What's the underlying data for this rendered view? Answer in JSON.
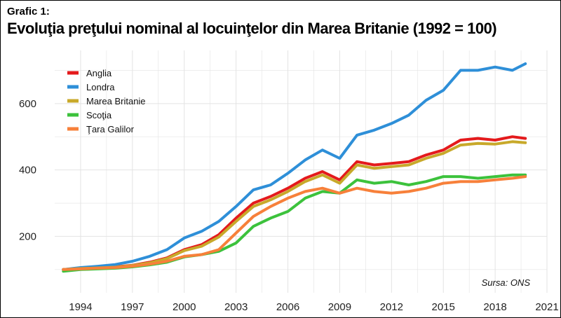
{
  "header": {
    "label": "Grafic 1:",
    "title": "Evoluţia preţului nominal al locuinţelor din Marea Britanie (1992 = 100)"
  },
  "source": "Sursa: ONS",
  "colors": {
    "grid": "#e3e3e3",
    "Anglia": "#e41a1c",
    "Londra": "#2e8fd8",
    "Marea Britanie": "#c8a92a",
    "Scotia": "#3cc23c",
    "Tara Galilor": "#f7803a"
  },
  "chart_data": {
    "type": "line",
    "title": "Evoluţia preţului nominal al locuinţelor din Marea Britanie (1992 = 100)",
    "xlabel": "",
    "ylabel": "",
    "xlim": [
      1992.5,
      2021
    ],
    "ylim": [
      30,
      760
    ],
    "xticks": [
      1994,
      1997,
      2000,
      2003,
      2006,
      2009,
      2012,
      2015,
      2018,
      2021
    ],
    "yticks": [
      200,
      400,
      600
    ],
    "grid": true,
    "legend_position": "top-left",
    "x": [
      1993,
      1994,
      1995,
      1996,
      1997,
      1998,
      1999,
      2000,
      2001,
      2002,
      2003,
      2004,
      2005,
      2006,
      2007,
      2008,
      2009,
      2010,
      2011,
      2012,
      2013,
      2014,
      2015,
      2016,
      2017,
      2018,
      2019,
      2019.75
    ],
    "series": [
      {
        "name": "Anglia",
        "colorKey": "Anglia",
        "values": [
          100,
          103,
          106,
          108,
          113,
          122,
          135,
          160,
          175,
          205,
          255,
          300,
          320,
          345,
          375,
          395,
          370,
          425,
          415,
          420,
          425,
          445,
          460,
          490,
          495,
          490,
          500,
          495
        ]
      },
      {
        "name": "Londra",
        "colorKey": "Londra",
        "values": [
          100,
          106,
          110,
          115,
          125,
          140,
          160,
          195,
          215,
          245,
          290,
          340,
          355,
          390,
          430,
          460,
          435,
          505,
          520,
          540,
          565,
          610,
          640,
          700,
          700,
          710,
          700,
          720
        ]
      },
      {
        "name": "Marea Britanie",
        "colorKey": "Marea Britanie",
        "values": [
          100,
          103,
          105,
          107,
          112,
          120,
          133,
          157,
          170,
          198,
          245,
          290,
          310,
          335,
          365,
          385,
          360,
          415,
          405,
          410,
          415,
          435,
          450,
          475,
          480,
          478,
          485,
          482
        ]
      },
      {
        "name": "Scoţia",
        "colorKey": "Scotia",
        "values": [
          95,
          100,
          102,
          104,
          108,
          114,
          122,
          138,
          145,
          155,
          180,
          230,
          255,
          275,
          315,
          335,
          330,
          370,
          360,
          365,
          355,
          365,
          380,
          380,
          375,
          380,
          385,
          385
        ]
      },
      {
        "name": "Ţara Galilor",
        "colorKey": "Tara Galilor",
        "values": [
          100,
          102,
          104,
          106,
          110,
          116,
          125,
          140,
          145,
          160,
          210,
          260,
          290,
          315,
          335,
          345,
          330,
          345,
          335,
          330,
          335,
          345,
          360,
          365,
          365,
          370,
          375,
          380
        ]
      }
    ]
  }
}
